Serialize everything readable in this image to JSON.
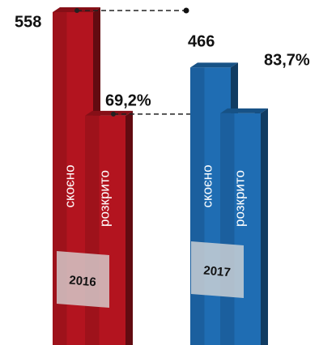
{
  "chart_data": {
    "type": "bar3d",
    "categories": [
      "2016",
      "2017"
    ],
    "colors": [
      "#b3141f",
      "#1f6db3"
    ],
    "series": [
      {
        "name": "скоєно",
        "values": [
          558,
          466
        ]
      },
      {
        "name": "розкрито",
        "values": [
          69.2,
          83.7
        ],
        "value_labels": [
          "69,2%",
          "83,7%"
        ]
      }
    ]
  }
}
